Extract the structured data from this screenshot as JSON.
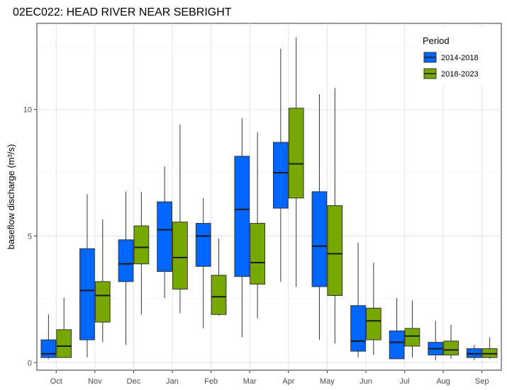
{
  "chart_data": {
    "type": "boxplot",
    "title": "02EC022: HEAD RIVER NEAR SEBRIGHT",
    "xlabel": "",
    "ylabel": "baseflow discharge (m³/s)",
    "ylim": [
      -0.3,
      13.4
    ],
    "yticks": [
      0,
      5,
      10
    ],
    "categories": [
      "Oct",
      "Nov",
      "Dec",
      "Jan",
      "Feb",
      "Mar",
      "Apr",
      "May",
      "Jun",
      "Jul",
      "Aug",
      "Sep"
    ],
    "grid": true,
    "legend": {
      "title": "Period",
      "position": "top-right"
    },
    "series": [
      {
        "name": "2014-2018",
        "color": "#0066ff",
        "boxes": [
          {
            "min": 0.15,
            "q1": 0.2,
            "median": 0.35,
            "q3": 0.9,
            "max": 1.9
          },
          {
            "min": 0.2,
            "q1": 0.9,
            "median": 2.85,
            "q3": 4.5,
            "max": 6.65
          },
          {
            "min": 0.7,
            "q1": 3.2,
            "median": 3.9,
            "q3": 4.85,
            "max": 6.75
          },
          {
            "min": 2.55,
            "q1": 3.6,
            "median": 5.25,
            "q3": 6.35,
            "max": 7.75
          },
          {
            "min": 1.35,
            "q1": 3.8,
            "median": 5.0,
            "q3": 5.5,
            "max": 6.5
          },
          {
            "min": 1.0,
            "q1": 3.4,
            "median": 6.05,
            "q3": 8.15,
            "max": 9.65
          },
          {
            "min": 3.2,
            "q1": 6.1,
            "median": 7.5,
            "q3": 8.7,
            "max": 12.4
          },
          {
            "min": 0.9,
            "q1": 3.0,
            "median": 4.6,
            "q3": 6.75,
            "max": 10.6
          },
          {
            "min": 0.2,
            "q1": 0.45,
            "median": 0.85,
            "q3": 2.25,
            "max": 4.75
          },
          {
            "min": 0.15,
            "q1": 0.15,
            "median": 0.8,
            "q3": 1.25,
            "max": 2.55
          },
          {
            "min": 0.1,
            "q1": 0.3,
            "median": 0.55,
            "q3": 0.8,
            "max": 1.65
          },
          {
            "min": 0.1,
            "q1": 0.2,
            "median": 0.35,
            "q3": 0.55,
            "max": 0.7
          }
        ]
      },
      {
        "name": "2018-2023",
        "color": "#76a800",
        "boxes": [
          {
            "min": 0.2,
            "q1": 0.2,
            "median": 0.65,
            "q3": 1.3,
            "max": 2.55
          },
          {
            "min": 0.8,
            "q1": 1.6,
            "median": 2.65,
            "q3": 3.2,
            "max": 5.65
          },
          {
            "min": 1.9,
            "q1": 3.9,
            "median": 4.55,
            "q3": 5.4,
            "max": 6.75
          },
          {
            "min": 1.95,
            "q1": 2.9,
            "median": 4.15,
            "q3": 5.55,
            "max": 9.4
          },
          {
            "min": 1.85,
            "q1": 1.9,
            "median": 2.6,
            "q3": 3.45,
            "max": 4.9
          },
          {
            "min": 1.75,
            "q1": 3.1,
            "median": 3.95,
            "q3": 5.5,
            "max": 9.1
          },
          {
            "min": 3.0,
            "q1": 6.5,
            "median": 7.85,
            "q3": 10.05,
            "max": 12.85
          },
          {
            "min": 0.75,
            "q1": 2.65,
            "median": 4.3,
            "q3": 6.2,
            "max": 10.85
          },
          {
            "min": 0.3,
            "q1": 0.9,
            "median": 1.65,
            "q3": 2.15,
            "max": 3.95
          },
          {
            "min": 0.2,
            "q1": 0.65,
            "median": 1.05,
            "q3": 1.35,
            "max": 2.45
          },
          {
            "min": 0.15,
            "q1": 0.3,
            "median": 0.5,
            "q3": 0.85,
            "max": 1.5
          },
          {
            "min": 0.15,
            "q1": 0.2,
            "median": 0.35,
            "q3": 0.55,
            "max": 1.0
          }
        ]
      }
    ]
  }
}
